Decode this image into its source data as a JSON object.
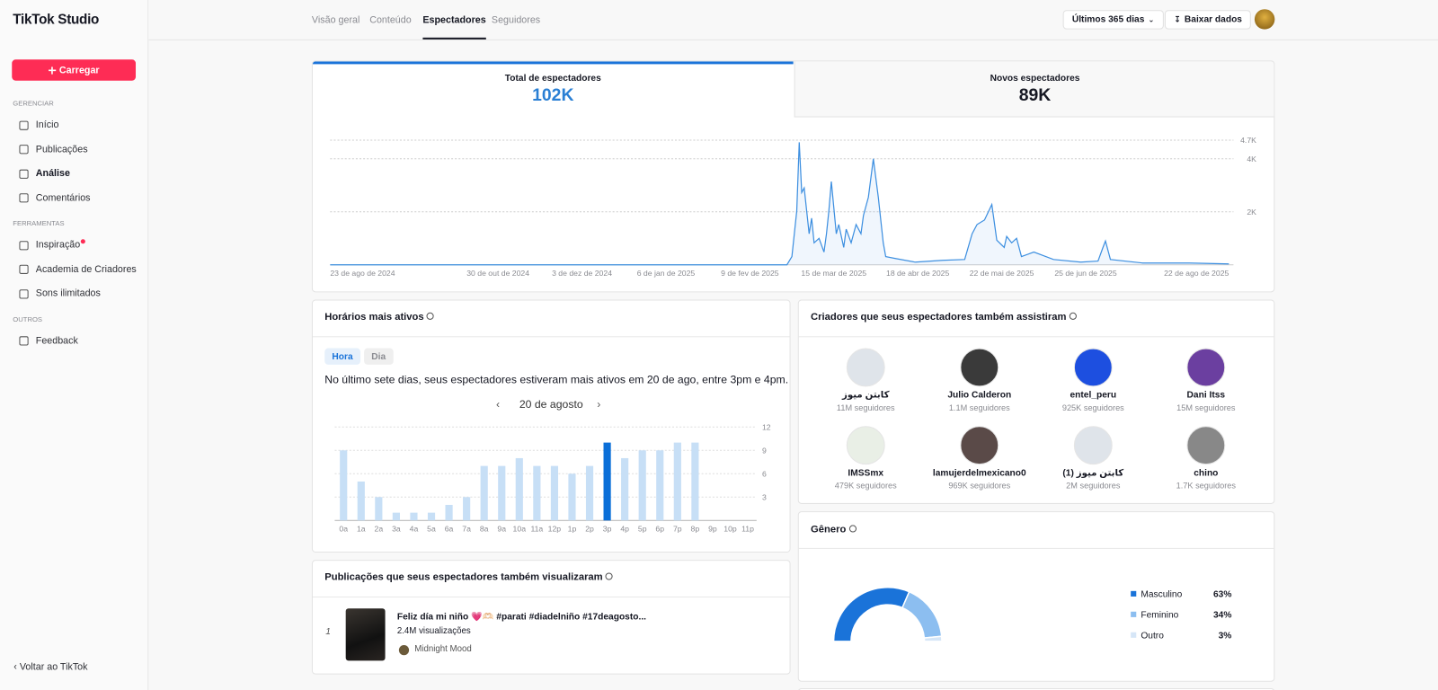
{
  "sidebar": {
    "logo": "TikTok Studio",
    "upload": "Carregar",
    "sections": [
      {
        "heading": "GERENCIAR",
        "items": [
          {
            "label": "Início"
          },
          {
            "label": "Publicações"
          },
          {
            "label": "Análise",
            "active": true
          },
          {
            "label": "Comentários"
          }
        ]
      },
      {
        "heading": "FERRAMENTAS",
        "items": [
          {
            "label": "Inspiração",
            "badge": true
          },
          {
            "label": "Academia de Criadores"
          },
          {
            "label": "Sons ilimitados"
          }
        ]
      },
      {
        "heading": "OUTROS",
        "items": [
          {
            "label": "Feedback"
          }
        ]
      }
    ],
    "footer": "Voltar ao TikTok"
  },
  "tabs": [
    {
      "label": "Visão geral"
    },
    {
      "label": "Conteúdo"
    },
    {
      "label": "Espectadores",
      "active": true
    },
    {
      "label": "Seguidores"
    }
  ],
  "toolbar": {
    "range": "Últimos 365 dias",
    "download": "Baixar dados"
  },
  "metrics": [
    {
      "label": "Total de espectadores",
      "value": "102K",
      "active": true
    },
    {
      "label": "Novos espectadores",
      "value": "89K"
    }
  ],
  "active_hours": {
    "toggles": [
      {
        "label": "Hora",
        "active": true
      },
      {
        "label": "Dia"
      }
    ],
    "summary": "No último sete dias, seus espectadores estiveram mais ativos em 20 de ago, entre 3pm e 4pm.",
    "date": "20 de agosto"
  },
  "creators": {
    "heading": "Criadores que seus espectadores também assistiram",
    "items": [
      {
        "name": "كابتن ميوز",
        "followers": "11M seguidores"
      },
      {
        "name": "Julio Calderon",
        "followers": "1.1M seguidores"
      },
      {
        "name": "entel_peru",
        "followers": "925K seguidores"
      },
      {
        "name": "Dani Itss",
        "followers": "15M seguidores"
      },
      {
        "name": "IMSSmx",
        "followers": "479K seguidores"
      },
      {
        "name": "lamujerdelmexicano0",
        "followers": "969K seguidores"
      },
      {
        "name": "كابتن ميوز (1)",
        "followers": "2M seguidores"
      },
      {
        "name": "chino",
        "followers": "1.7K seguidores"
      }
    ]
  },
  "posts": {
    "heading": "Publicações que seus espectadores também visualizaram",
    "items": [
      {
        "rank": 1,
        "title": "Feliz día mi niño 💗🫶🏻 #parati #diadelniño #17deagosto...",
        "views": "2.4M visualizações",
        "sound": "Midnight Mood"
      }
    ]
  },
  "chart_data": [
    {
      "type": "line",
      "color": "#3d8fe0",
      "grid": true,
      "x": [
        "2024-08-23",
        "2024-10-01",
        "2024-12-01",
        "2025-02-01",
        "2025-02-24",
        "2025-02-26",
        "2025-02-28",
        "2025-03-01",
        "2025-03-02",
        "2025-03-03",
        "2025-03-05",
        "2025-03-06",
        "2025-03-07",
        "2025-03-09",
        "2025-03-11",
        "2025-03-12",
        "2025-03-13",
        "2025-03-14",
        "2025-03-16",
        "2025-03-17",
        "2025-03-19",
        "2025-03-20",
        "2025-03-22",
        "2025-03-24",
        "2025-03-26",
        "2025-03-27",
        "2025-03-29",
        "2025-03-31",
        "2025-04-02",
        "2025-04-04",
        "2025-04-05",
        "2025-04-09",
        "2025-04-17",
        "2025-04-28",
        "2025-05-07",
        "2025-05-10",
        "2025-05-12",
        "2025-05-15",
        "2025-05-18",
        "2025-05-20",
        "2025-05-23",
        "2025-05-24",
        "2025-05-26",
        "2025-05-28",
        "2025-05-30",
        "2025-06-04",
        "2025-06-12",
        "2025-06-23",
        "2025-06-30",
        "2025-07-02",
        "2025-07-03",
        "2025-07-05",
        "2025-07-18",
        "2025-08-06",
        "2025-08-22"
      ],
      "values": [
        0,
        0,
        0,
        0,
        0,
        310,
        2035,
        4620,
        2725,
        2900,
        1170,
        1760,
        830,
        1000,
        480,
        1170,
        2035,
        3140,
        1170,
        1520,
        655,
        1345,
        830,
        1520,
        1170,
        1860,
        2550,
        4000,
        2550,
        830,
        310,
        240,
        100,
        170,
        200,
        1170,
        1520,
        1690,
        2275,
        930,
        655,
        1070,
        830,
        1000,
        310,
        480,
        200,
        100,
        140,
        655,
        900,
        200,
        70,
        70,
        35
      ],
      "xlim": [
        "2024-08-23",
        "2025-08-22"
      ],
      "ylim": [
        0,
        4700
      ],
      "yticks": [
        {
          "value": 2000,
          "label": "2K"
        },
        {
          "value": 4000,
          "label": "4K"
        },
        {
          "value": 4700,
          "label": "4.7K"
        }
      ],
      "xticks": [
        {
          "value": "2024-08-23",
          "label": "23 de ago de 2024"
        },
        {
          "value": "2024-10-30",
          "label": "30 de out de 2024"
        },
        {
          "value": "2024-12-03",
          "label": "3 de dez de 2024"
        },
        {
          "value": "2025-01-06",
          "label": "6 de jan de 2025"
        },
        {
          "value": "2025-02-09",
          "label": "9 de fev de 2025"
        },
        {
          "value": "2025-03-15",
          "label": "15 de mar de 2025"
        },
        {
          "value": "2025-04-18",
          "label": "18 de abr de 2025"
        },
        {
          "value": "2025-05-22",
          "label": "22 de mai de 2025"
        },
        {
          "value": "2025-06-25",
          "label": "25 de jun de 2025"
        },
        {
          "value": "2025-08-22",
          "label": "22 de ago de 2025"
        }
      ]
    },
    {
      "type": "bar",
      "title": "Horários mais ativos",
      "color": "#c7dff6",
      "highlight_color": "#0b6fd8",
      "highlight_index": 15,
      "grid": true,
      "categories": [
        "0a",
        "1a",
        "2a",
        "3a",
        "4a",
        "5a",
        "6a",
        "7a",
        "8a",
        "9a",
        "10a",
        "11a",
        "12p",
        "1p",
        "2p",
        "3p",
        "4p",
        "5p",
        "6p",
        "7p",
        "8p",
        "9p",
        "10p",
        "11p"
      ],
      "values": [
        9,
        5,
        3,
        1,
        1,
        1,
        2,
        3,
        7,
        7,
        8,
        7,
        7,
        6,
        7,
        10,
        8,
        9,
        9,
        10,
        10,
        0,
        0,
        0
      ],
      "ylim": [
        0,
        12
      ],
      "yticks": [
        3,
        6,
        9,
        12
      ]
    },
    {
      "type": "pie",
      "title": "Gênero",
      "categories": [
        "Masculino",
        "Feminino",
        "Outro"
      ],
      "values": [
        63,
        34,
        3
      ],
      "value_labels": [
        "63%",
        "34%",
        "3%"
      ],
      "colors": [
        "#1a73d9",
        "#8cbef0",
        "#d6e6f7"
      ]
    }
  ]
}
